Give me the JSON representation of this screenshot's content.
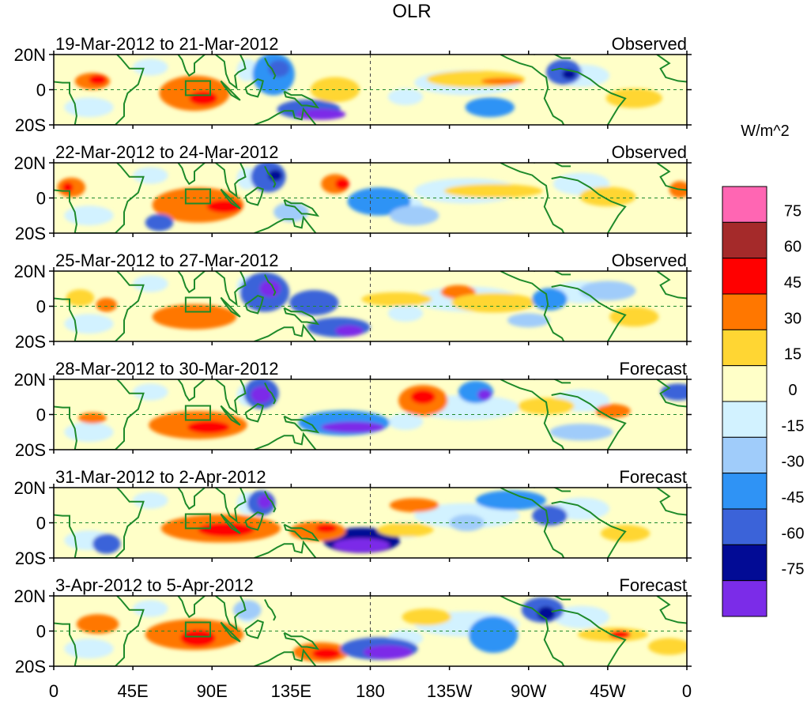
{
  "title": "OLR",
  "colorbar": {
    "unit": "W/m^2",
    "tick_labels": [
      "75",
      "60",
      "45",
      "30",
      "15",
      "0",
      "-15",
      "-30",
      "-45",
      "-60",
      "-75"
    ],
    "colors": [
      "#ff66b3",
      "#a52a2a",
      "#ff0000",
      "#ff7700",
      "#ffd633",
      "#ffffc8",
      "#d2f2ff",
      "#a0ccfa",
      "#2f93f5",
      "#3b63d9",
      "#020b95",
      "#7b2ce8"
    ]
  },
  "lat_labels": [
    "20N",
    "0",
    "20S"
  ],
  "lon_labels": [
    "0",
    "45E",
    "90E",
    "135E",
    "180",
    "135W",
    "90W",
    "45W",
    "0"
  ],
  "panels": [
    {
      "dates": "19-Mar-2012 to 21-Mar-2012",
      "kind": "Observed"
    },
    {
      "dates": "22-Mar-2012 to 24-Mar-2012",
      "kind": "Observed"
    },
    {
      "dates": "25-Mar-2012 to 27-Mar-2012",
      "kind": "Observed"
    },
    {
      "dates": "28-Mar-2012 to 30-Mar-2012",
      "kind": "Forecast"
    },
    {
      "dates": "31-Mar-2012 to 2-Apr-2012",
      "kind": "Forecast"
    },
    {
      "dates": "3-Apr-2012 to 5-Apr-2012",
      "kind": "Forecast"
    }
  ]
}
